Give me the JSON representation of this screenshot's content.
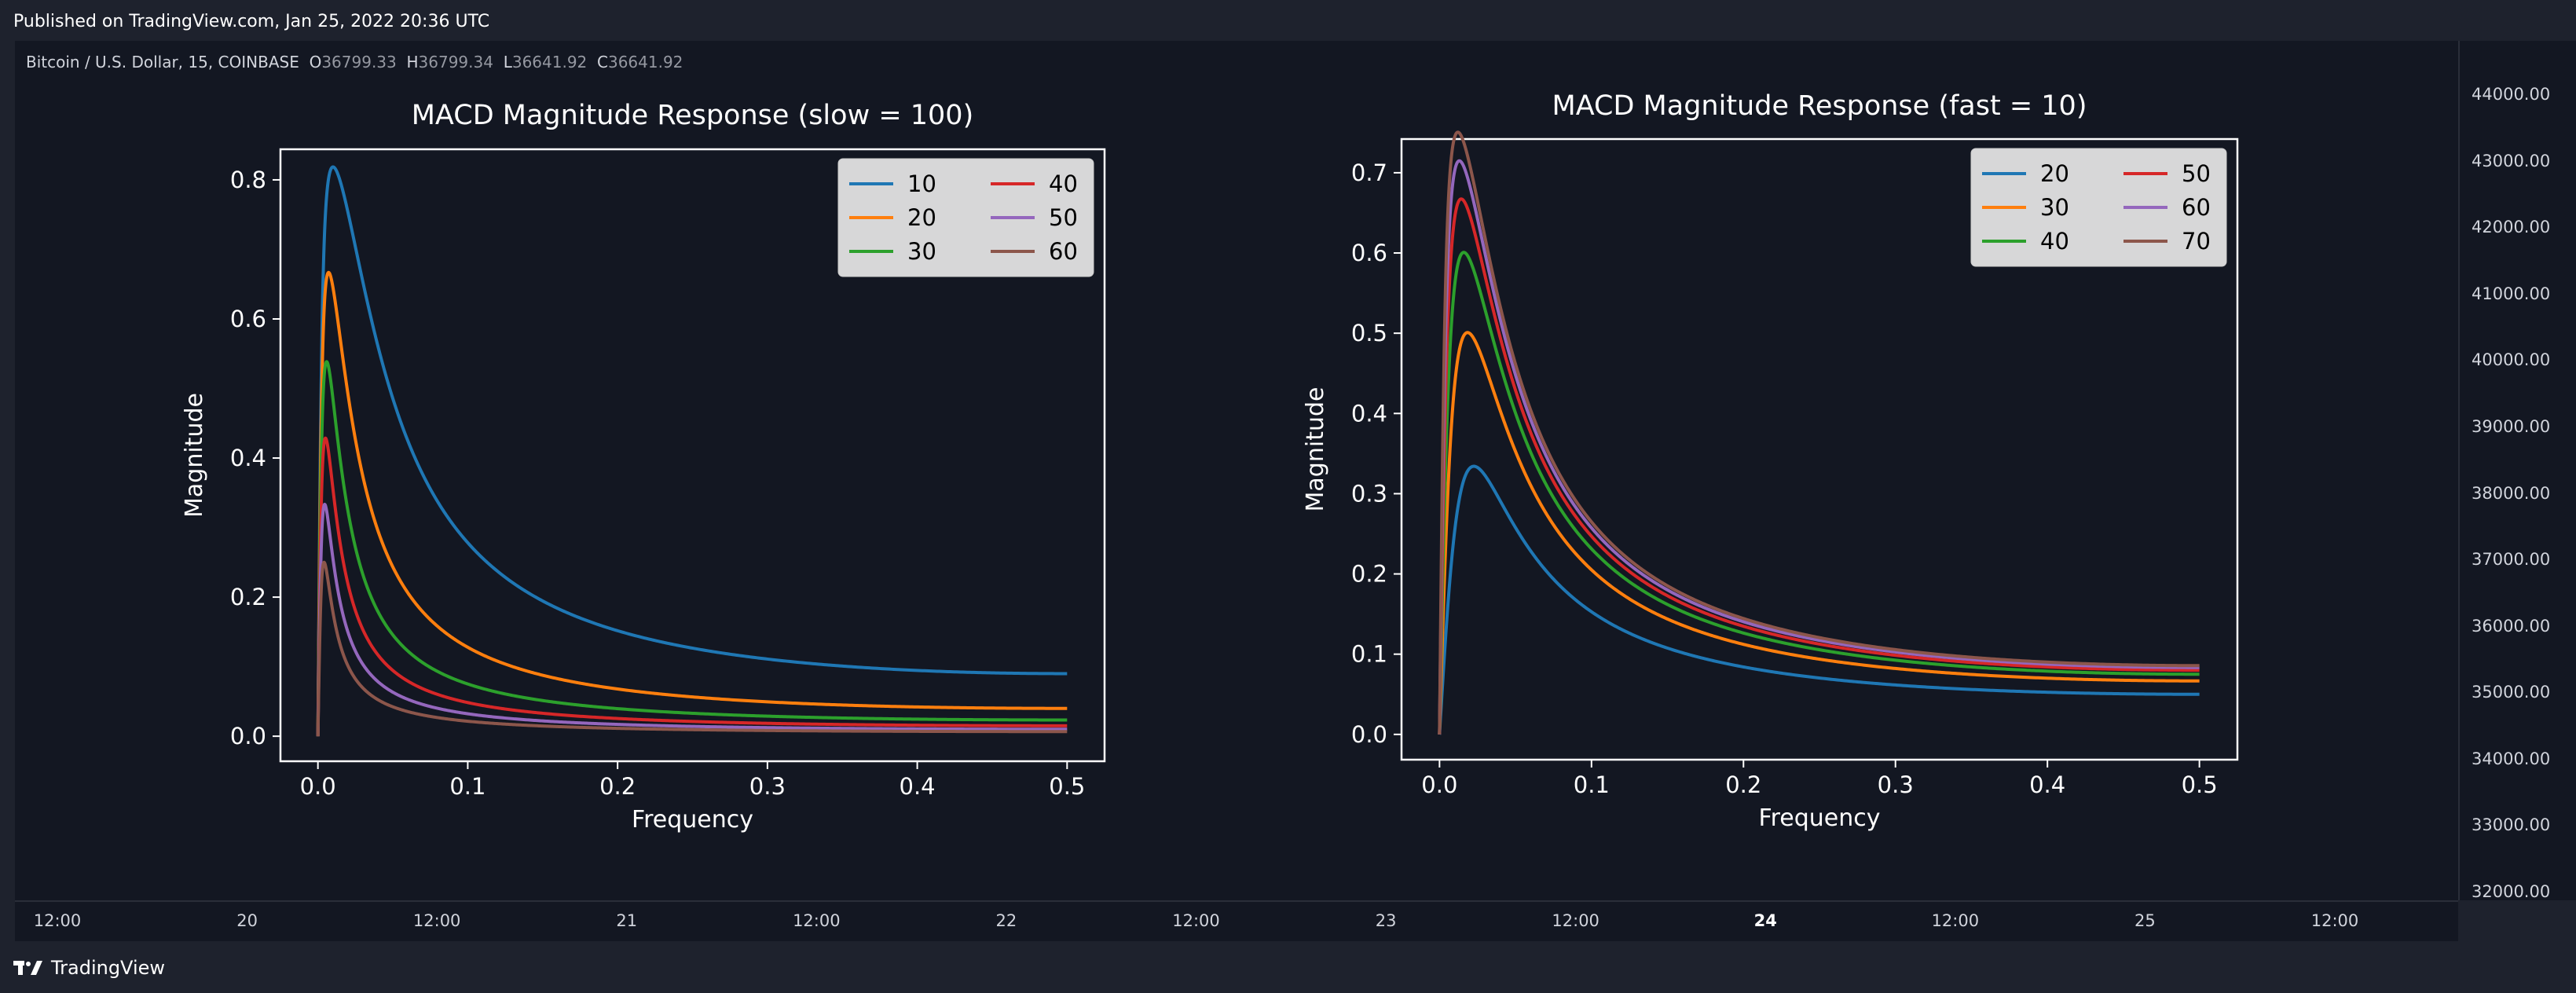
{
  "header": {
    "published": "Published on TradingView.com, Jan 25, 2022 20:36 UTC"
  },
  "symbol": {
    "name": "Bitcoin / U.S. Dollar, 15, COINBASE",
    "o_label": "O",
    "o_value": "36799.33",
    "h_label": "H",
    "h_value": "36799.34",
    "l_label": "L",
    "l_value": "36641.92",
    "c_label": "C",
    "c_value": "36641.92"
  },
  "price_axis": [
    "44000.00",
    "43000.00",
    "42000.00",
    "41000.00",
    "40000.00",
    "39000.00",
    "38000.00",
    "37000.00",
    "36000.00",
    "35000.00",
    "34000.00",
    "33000.00",
    "32000.00"
  ],
  "time_axis": [
    {
      "label": "12:00"
    },
    {
      "label": "20"
    },
    {
      "label": "12:00"
    },
    {
      "label": "21"
    },
    {
      "label": "12:00"
    },
    {
      "label": "22"
    },
    {
      "label": "12:00"
    },
    {
      "label": "23"
    },
    {
      "label": "12:00"
    },
    {
      "label": "24",
      "bold": true
    },
    {
      "label": "12:00"
    },
    {
      "label": "25"
    },
    {
      "label": "12:00"
    }
  ],
  "footer": {
    "brand": "TradingView"
  },
  "colors": {
    "c10": "#1f77b4",
    "c20": "#ff7f0e",
    "c30": "#2ca02c",
    "c40": "#d62728",
    "c50": "#9467bd",
    "c60": "#8c564b"
  },
  "chart_data": [
    {
      "type": "line",
      "title": "MACD Magnitude Response (slow = 100)",
      "xlabel": "Frequency",
      "ylabel": "Magnitude",
      "xlim": [
        0,
        0.5
      ],
      "ylim": [
        0,
        0.8
      ],
      "xticks": [
        "0.0",
        "0.1",
        "0.2",
        "0.3",
        "0.4",
        "0.5"
      ],
      "yticks": [
        "0.0",
        "0.2",
        "0.4",
        "0.6",
        "0.8"
      ],
      "legend_position": "top-right",
      "slow": 100,
      "series": [
        {
          "name": "10",
          "color": "#1f77b4",
          "fast": 10
        },
        {
          "name": "20",
          "color": "#ff7f0e",
          "fast": 20
        },
        {
          "name": "30",
          "color": "#2ca02c",
          "fast": 30
        },
        {
          "name": "40",
          "color": "#d62728",
          "fast": 40
        },
        {
          "name": "50",
          "color": "#9467bd",
          "fast": 50
        },
        {
          "name": "60",
          "color": "#8c564b",
          "fast": 60
        }
      ]
    },
    {
      "type": "line",
      "title": "MACD Magnitude Response (fast = 10)",
      "xlabel": "Frequency",
      "ylabel": "Magnitude",
      "xlim": [
        0,
        0.5
      ],
      "ylim": [
        0,
        0.7
      ],
      "xticks": [
        "0.0",
        "0.1",
        "0.2",
        "0.3",
        "0.4",
        "0.5"
      ],
      "yticks": [
        "0.0",
        "0.1",
        "0.2",
        "0.3",
        "0.4",
        "0.5",
        "0.6",
        "0.7"
      ],
      "legend_position": "top-right",
      "fast": 10,
      "series": [
        {
          "name": "20",
          "color": "#1f77b4",
          "slow": 20
        },
        {
          "name": "30",
          "color": "#ff7f0e",
          "slow": 30
        },
        {
          "name": "40",
          "color": "#2ca02c",
          "slow": 40
        },
        {
          "name": "50",
          "color": "#d62728",
          "slow": 50
        },
        {
          "name": "60",
          "color": "#9467bd",
          "slow": 60
        },
        {
          "name": "70",
          "color": "#8c564b",
          "slow": 70
        }
      ]
    }
  ]
}
